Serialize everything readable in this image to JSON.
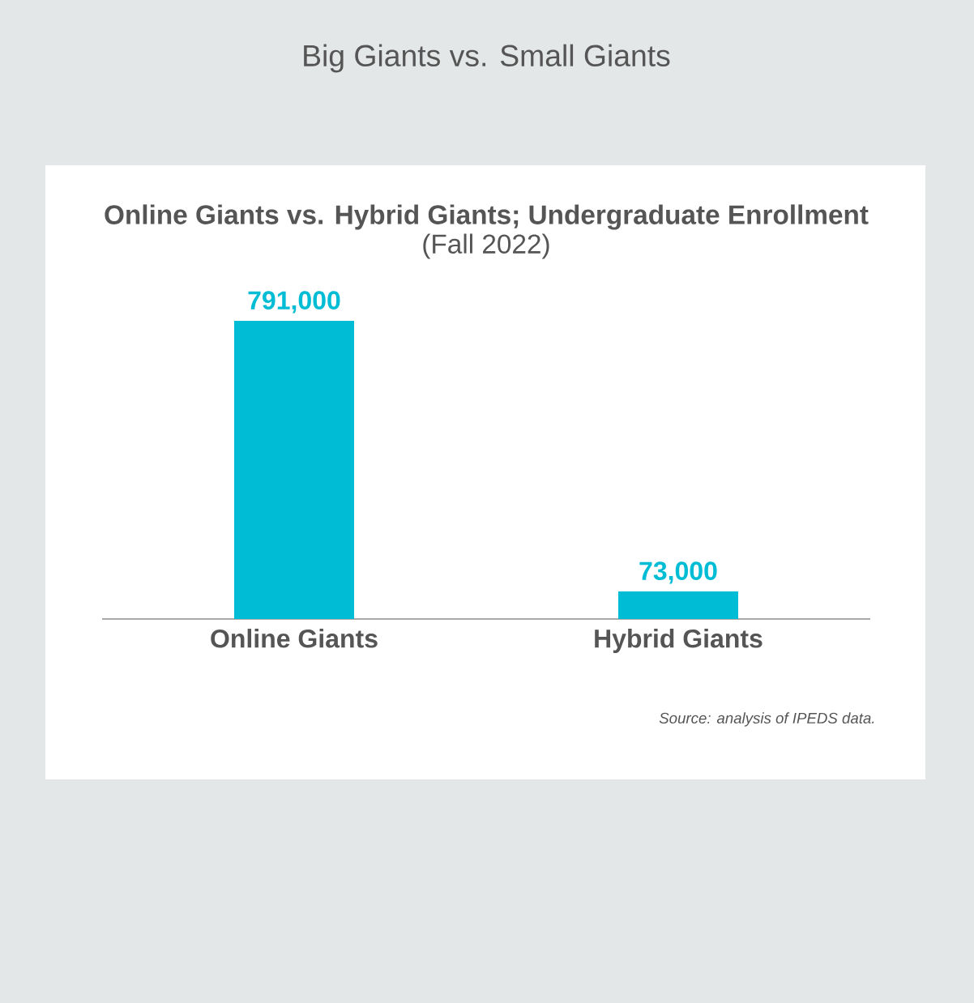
{
  "chart_data": {
    "type": "bar",
    "title": "Big Giants vs. Small Giants",
    "subtitle": "Online Giants vs. Hybrid Giants; Undergraduate Enrollment",
    "annotations": [
      "(Fall 2022)",
      "Source: analysis of IPEDS data."
    ],
    "categories": [
      "Online Giants",
      "Hybrid Giants"
    ],
    "values": [
      791000,
      73000
    ],
    "color": "#00bcd4",
    "value_labels": [
      "791,000",
      "73,000"
    ]
  }
}
